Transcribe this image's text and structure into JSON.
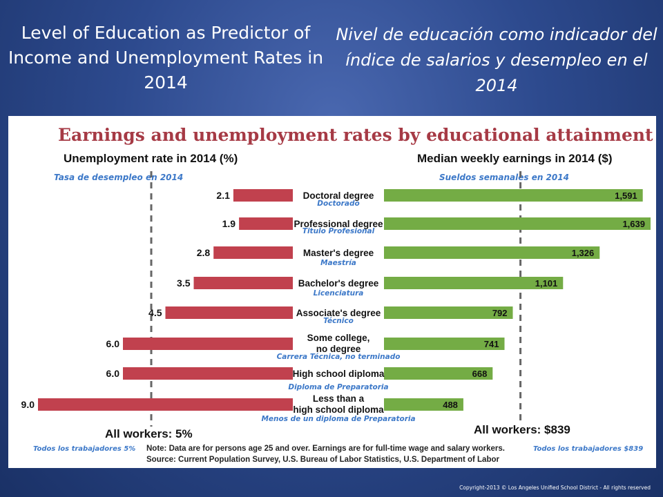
{
  "slide": {
    "title_en": "Level of Education as Predictor of Income and Unemployment Rates in 2014",
    "title_es": "Nivel de educación como indicador del índice de salarios y desempleo en el 2014",
    "copyright": "Copyright-2013 © Los Angeles Unified School District - All rights reserved"
  },
  "colors": {
    "unemployment_bar": "#c1414e",
    "earnings_bar": "#74ac45",
    "chart_title": "#a63a45",
    "translation_text": "#3c78c8",
    "slide_background": "#2d4a8e"
  },
  "chart_data": {
    "type": "bar",
    "title": "Earnings and unemployment rates by educational attainment",
    "categories": [
      "Doctoral degree",
      "Professional degree",
      "Master's degree",
      "Bachelor's degree",
      "Associate's degree",
      "Some college, no degree",
      "High school diploma",
      "Less than a high school diploma"
    ],
    "categories_es": [
      "Doctorado",
      "Titulo Profesional",
      "Maestría",
      "Licenciatura",
      "Técnico",
      "Carrera Técnica, no terminado",
      "Diploma de Preparatoria",
      "Menos de un diploma de Preparatoria"
    ],
    "series": [
      {
        "name": "Unemployment rate in 2014 (%)",
        "name_es": "Tasa de desempleo en 2014",
        "labels": [
          "2.1",
          "1.9",
          "2.8",
          "3.5",
          "4.5",
          "6.0",
          "6.0",
          "9.0"
        ],
        "values": [
          2.1,
          1.9,
          2.8,
          3.5,
          4.5,
          6.0,
          6.0,
          9.0
        ],
        "reference_label": "All workers: 5%",
        "reference_label_es": "Todos los trabajadores 5%",
        "reference_value": 5.0
      },
      {
        "name": "Median weekly earnings in 2014 ($)",
        "name_es": "Sueldos semanales en 2014",
        "labels": [
          "1,591",
          "1,639",
          "1,326",
          "1,101",
          "792",
          "741",
          "668",
          "488"
        ],
        "values": [
          1591,
          1639,
          1326,
          1101,
          792,
          741,
          668,
          488
        ],
        "reference_label": "All workers: $839",
        "reference_label_es": "Todos los trabajadores $839",
        "reference_value": 839
      }
    ],
    "note": "Note: Data are for persons age 25 and over. Earnings are for full-time wage and salary workers.",
    "source": "Source: Current Population Survey, U.S. Bureau of Labor Statistics, U.S. Department of Labor"
  }
}
